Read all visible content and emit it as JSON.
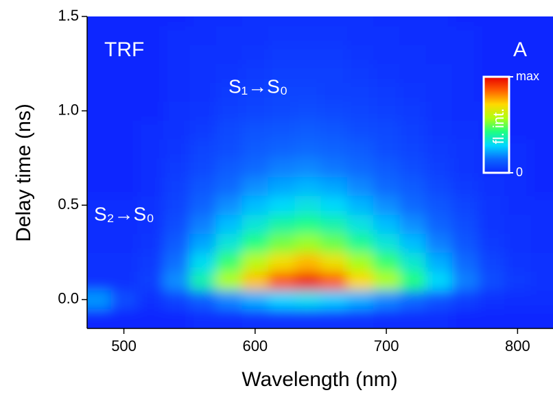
{
  "chart_data": {
    "type": "heatmap",
    "x_label": "Wavelength (nm)",
    "y_label": "Delay time (ns)",
    "annotations": [
      "TRF",
      "A",
      "S₁→S₀",
      "S₂→S₀"
    ],
    "colorbar_label": "fl. int.",
    "colorbar_ticks": [
      0,
      {
        "value": 1,
        "label": "max"
      }
    ],
    "colorscale": [
      "#0a28ff",
      "#0a6aff",
      "#00d8ff",
      "#20ff80",
      "#b0ff10",
      "#ffd800",
      "#ff6000",
      "#e80000"
    ],
    "xlim": [
      472,
      827
    ],
    "ylim": [
      -0.153,
      1.5
    ],
    "xticks": [
      500,
      600,
      700,
      800
    ],
    "yticks": [
      {
        "value": 0,
        "label": "0.0"
      },
      0.5,
      {
        "value": 1,
        "label": "1.0"
      },
      1.5
    ],
    "x": [
      480,
      500,
      520,
      540,
      560,
      580,
      600,
      620,
      640,
      660,
      680,
      700,
      720,
      740,
      760,
      780,
      800,
      820
    ],
    "y": [
      -0.1,
      0,
      0.1,
      0.2,
      0.3,
      0.4,
      0.5,
      0.6,
      0.7,
      0.8,
      0.9,
      1.0,
      1.1,
      1.2,
      1.3,
      1.4,
      1.5
    ],
    "z": [
      [
        0,
        0,
        0,
        0,
        0.01,
        0.01,
        0.02,
        0.02,
        0.02,
        0.02,
        0.02,
        0.01,
        0.01,
        0.01,
        0,
        0,
        0,
        0
      ],
      [
        0.2,
        0.08,
        0.02,
        0.06,
        0.12,
        0.18,
        0.23,
        0.28,
        0.3,
        0.27,
        0.23,
        0.18,
        0.14,
        0.09,
        0.05,
        0.02,
        0.01,
        0.01
      ],
      [
        0.02,
        0.02,
        0.05,
        0.19,
        0.38,
        0.57,
        0.74,
        0.87,
        0.95,
        0.86,
        0.71,
        0.57,
        0.43,
        0.29,
        0.17,
        0.08,
        0.04,
        0.02
      ],
      [
        0.02,
        0.02,
        0.04,
        0.15,
        0.3,
        0.45,
        0.59,
        0.69,
        0.75,
        0.68,
        0.56,
        0.45,
        0.34,
        0.23,
        0.14,
        0.06,
        0.03,
        0.02
      ],
      [
        0.01,
        0.01,
        0.03,
        0.11,
        0.22,
        0.33,
        0.43,
        0.51,
        0.55,
        0.5,
        0.41,
        0.33,
        0.25,
        0.17,
        0.1,
        0.04,
        0.02,
        0.01
      ],
      [
        0.01,
        0.01,
        0.02,
        0.08,
        0.17,
        0.25,
        0.33,
        0.39,
        0.42,
        0.38,
        0.32,
        0.25,
        0.19,
        0.13,
        0.08,
        0.03,
        0.02,
        0.01
      ],
      [
        0.01,
        0.01,
        0.02,
        0.06,
        0.13,
        0.19,
        0.25,
        0.29,
        0.32,
        0.29,
        0.24,
        0.19,
        0.14,
        0.1,
        0.06,
        0.03,
        0.01,
        0.01
      ],
      [
        0,
        0,
        0.01,
        0.05,
        0.1,
        0.14,
        0.19,
        0.22,
        0.24,
        0.22,
        0.18,
        0.14,
        0.11,
        0.07,
        0.04,
        0.02,
        0.01,
        0
      ],
      [
        0,
        0,
        0.01,
        0.04,
        0.07,
        0.11,
        0.14,
        0.17,
        0.18,
        0.16,
        0.14,
        0.11,
        0.08,
        0.05,
        0.03,
        0.01,
        0.01,
        0
      ],
      [
        0,
        0,
        0.01,
        0.03,
        0.06,
        0.08,
        0.11,
        0.13,
        0.14,
        0.13,
        0.11,
        0.08,
        0.06,
        0.04,
        0.03,
        0.01,
        0.01,
        0
      ],
      [
        0,
        0,
        0.01,
        0.02,
        0.04,
        0.07,
        0.09,
        0.1,
        0.11,
        0.1,
        0.08,
        0.07,
        0.05,
        0.03,
        0.02,
        0.01,
        0,
        0
      ],
      [
        0,
        0,
        0,
        0.02,
        0.03,
        0.05,
        0.06,
        0.07,
        0.08,
        0.07,
        0.06,
        0.05,
        0.04,
        0.02,
        0.01,
        0.01,
        0,
        0
      ],
      [
        0,
        0,
        0,
        0.01,
        0.02,
        0.04,
        0.05,
        0.06,
        0.06,
        0.05,
        0.05,
        0.04,
        0.03,
        0.02,
        0.01,
        0,
        0,
        0
      ],
      [
        0,
        0,
        0,
        0.01,
        0.02,
        0.03,
        0.04,
        0.05,
        0.05,
        0.05,
        0.04,
        0.03,
        0.02,
        0.02,
        0.01,
        0,
        0,
        0
      ],
      [
        0,
        0,
        0,
        0.01,
        0.02,
        0.02,
        0.03,
        0.04,
        0.04,
        0.04,
        0.03,
        0.02,
        0.02,
        0.01,
        0.01,
        0,
        0,
        0
      ],
      [
        0,
        0,
        0,
        0.01,
        0.01,
        0.02,
        0.02,
        0.03,
        0.03,
        0.03,
        0.02,
        0.02,
        0.01,
        0.01,
        0.01,
        0,
        0,
        0
      ],
      [
        0,
        0,
        0,
        0,
        0.01,
        0.01,
        0.02,
        0.02,
        0.02,
        0.02,
        0.02,
        0.01,
        0.01,
        0.01,
        0,
        0,
        0,
        0
      ]
    ]
  }
}
